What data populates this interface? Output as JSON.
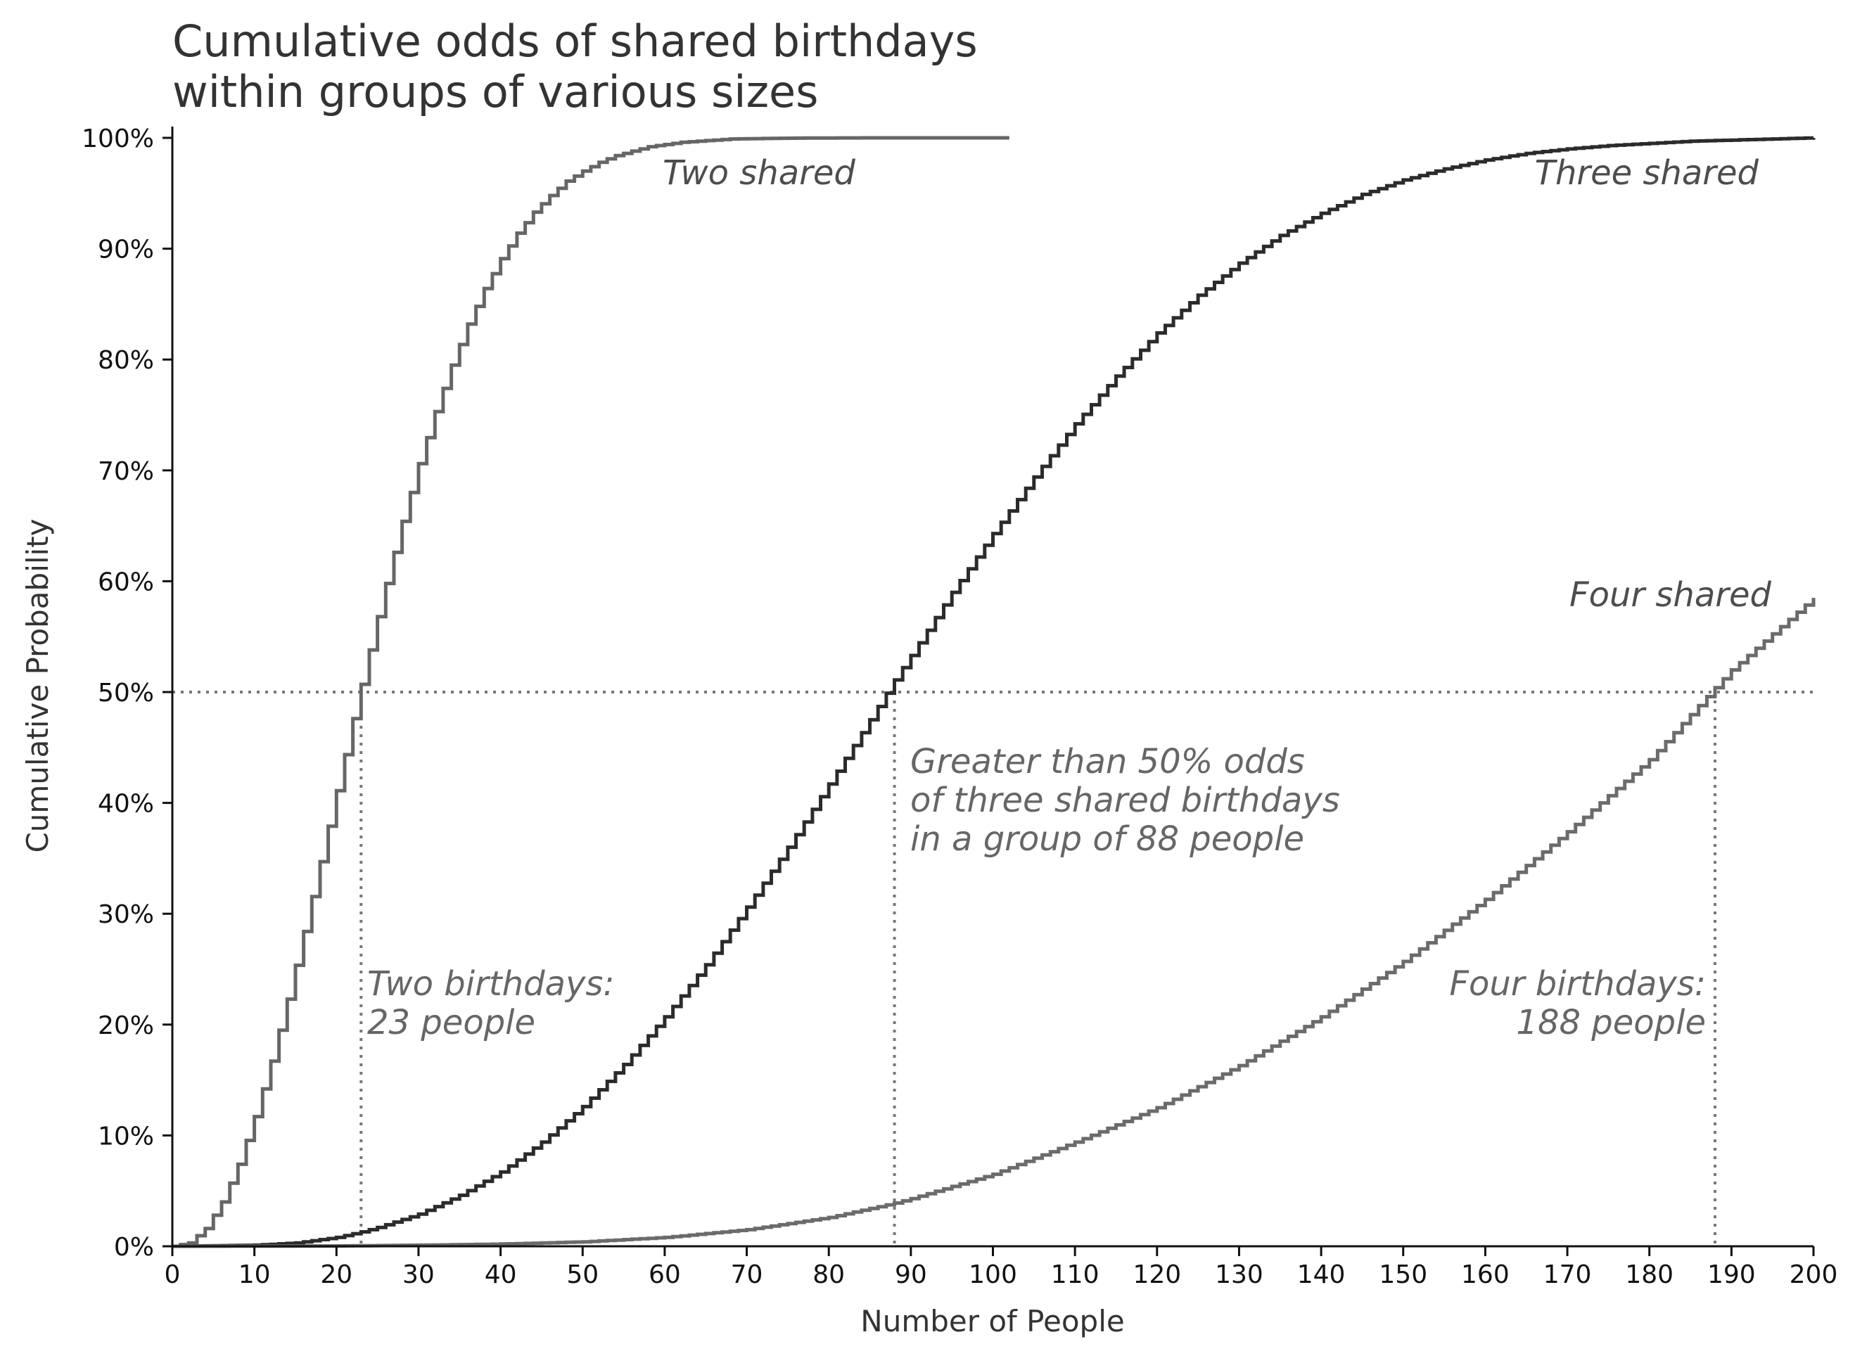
{
  "chart_data": {
    "type": "line",
    "title_line1": "Cumulative odds of shared birthdays",
    "title_line2": "within groups of various sizes",
    "xlabel": "Number of People",
    "ylabel": "Cumulative Probability",
    "xlim": [
      0,
      200
    ],
    "ylim": [
      0,
      1
    ],
    "x_ticks": [
      "0",
      "10",
      "20",
      "30",
      "40",
      "50",
      "60",
      "70",
      "80",
      "90",
      "100",
      "110",
      "120",
      "130",
      "140",
      "150",
      "160",
      "170",
      "180",
      "190",
      "200"
    ],
    "y_ticks": [
      "0%",
      "10%",
      "20%",
      "30%",
      "40%",
      "50%",
      "60%",
      "70%",
      "80%",
      "90%",
      "100%"
    ],
    "grid": false,
    "step": true,
    "threshold": 0.5,
    "series": [
      {
        "name": "Two shared",
        "color": "#666666",
        "x": [
          0,
          2,
          4,
          6,
          8,
          10,
          12,
          14,
          16,
          18,
          20,
          22,
          23,
          24,
          26,
          28,
          30,
          32,
          34,
          36,
          38,
          40,
          42,
          44,
          46,
          48,
          50,
          52,
          54,
          56,
          58,
          60,
          62,
          64,
          66,
          68,
          70,
          75,
          80,
          85,
          90,
          95,
          102
        ],
        "y": [
          0,
          0.003,
          0.016,
          0.04,
          0.074,
          0.117,
          0.167,
          0.223,
          0.284,
          0.347,
          0.411,
          0.476,
          0.507,
          0.538,
          0.598,
          0.654,
          0.706,
          0.753,
          0.795,
          0.832,
          0.864,
          0.891,
          0.914,
          0.933,
          0.948,
          0.961,
          0.97,
          0.978,
          0.984,
          0.988,
          0.992,
          0.994,
          0.996,
          0.997,
          0.998,
          0.999,
          0.9992,
          0.9997,
          0.9999,
          1,
          1,
          1,
          1
        ]
      },
      {
        "name": "Three shared",
        "color": "#2b2b2b",
        "x": [
          0,
          10,
          15,
          20,
          23,
          25,
          30,
          35,
          40,
          45,
          50,
          55,
          60,
          65,
          70,
          75,
          80,
          85,
          88,
          90,
          95,
          100,
          105,
          110,
          115,
          120,
          125,
          130,
          135,
          140,
          145,
          150,
          155,
          160,
          165,
          170,
          175,
          180,
          185,
          190,
          195,
          200
        ],
        "y": [
          0,
          0.001,
          0.003,
          0.008,
          0.013,
          0.017,
          0.029,
          0.046,
          0.067,
          0.094,
          0.126,
          0.164,
          0.207,
          0.254,
          0.306,
          0.36,
          0.417,
          0.475,
          0.511,
          0.533,
          0.59,
          0.643,
          0.694,
          0.742,
          0.785,
          0.824,
          0.858,
          0.887,
          0.912,
          0.932,
          0.949,
          0.962,
          0.972,
          0.98,
          0.986,
          0.99,
          0.993,
          0.995,
          0.997,
          0.998,
          0.999,
          1
        ]
      },
      {
        "name": "Four shared",
        "color": "#6b6b6b",
        "x": [
          0,
          20,
          30,
          40,
          50,
          60,
          70,
          80,
          88,
          90,
          100,
          110,
          120,
          130,
          140,
          150,
          160,
          170,
          180,
          188,
          190,
          200
        ],
        "y": [
          0,
          0.0003,
          0.001,
          0.002,
          0.004,
          0.008,
          0.015,
          0.026,
          0.039,
          0.043,
          0.065,
          0.094,
          0.125,
          0.163,
          0.207,
          0.257,
          0.313,
          0.374,
          0.439,
          0.504,
          0.52,
          0.585
        ]
      }
    ],
    "reference_lines": [
      {
        "x": 23,
        "y": 0.5
      },
      {
        "x": 88,
        "y": 0.5
      },
      {
        "x": 188,
        "y": 0.5
      }
    ],
    "annotations": {
      "two": [
        "Two birthdays:",
        "23 people"
      ],
      "three": [
        "Greater than 50% odds",
        "of three shared birthdays",
        "in a group of 88 people"
      ],
      "four": [
        "Four birthdays:",
        "188 people"
      ]
    }
  }
}
